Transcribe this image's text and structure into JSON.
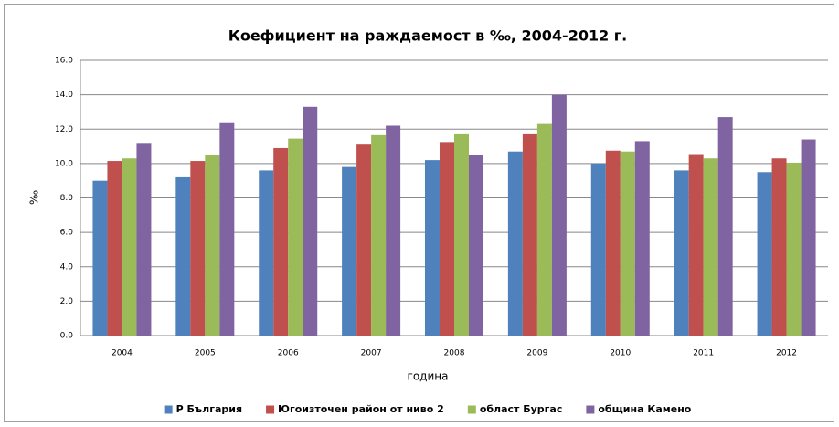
{
  "chart_data": {
    "type": "bar",
    "title": "Коефициент на раждаемост в ‰, 2004-2012 г.",
    "x_label": "година",
    "y_label": "‰",
    "categories": [
      "2004",
      "2005",
      "2006",
      "2007",
      "2008",
      "2009",
      "2010",
      "2011",
      "2012"
    ],
    "series": [
      {
        "name": "Р България",
        "color": "#4f81bd",
        "values": [
          9.0,
          9.2,
          9.6,
          9.8,
          10.2,
          10.7,
          10.0,
          9.6,
          9.5
        ]
      },
      {
        "name": "Югоизточен район от ниво 2",
        "color": "#c0504d",
        "values": [
          10.15,
          10.15,
          10.9,
          11.1,
          11.25,
          11.7,
          10.75,
          10.55,
          10.3
        ]
      },
      {
        "name": "област Бургас",
        "color": "#9bbb59",
        "values": [
          10.3,
          10.5,
          11.45,
          11.65,
          11.7,
          12.3,
          10.7,
          10.3,
          10.05
        ]
      },
      {
        "name": "община Камено",
        "color": "#8064a2",
        "values": [
          11.2,
          12.4,
          13.3,
          12.2,
          10.5,
          14.0,
          11.3,
          12.7,
          11.4
        ]
      }
    ],
    "ylim": [
      0,
      16
    ],
    "yticks": [
      {
        "value": 0,
        "label": "0.0"
      },
      {
        "value": 2,
        "label": "2.0"
      },
      {
        "value": 4,
        "label": "4.0"
      },
      {
        "value": 6,
        "label": "6.0"
      },
      {
        "value": 8,
        "label": "8.0"
      },
      {
        "value": 10,
        "label": "10.0"
      },
      {
        "value": 12,
        "label": "12.0"
      },
      {
        "value": 14,
        "label": "14.0"
      },
      {
        "value": 16,
        "label": "16.0"
      }
    ],
    "grid": true,
    "legend": "bottom"
  }
}
